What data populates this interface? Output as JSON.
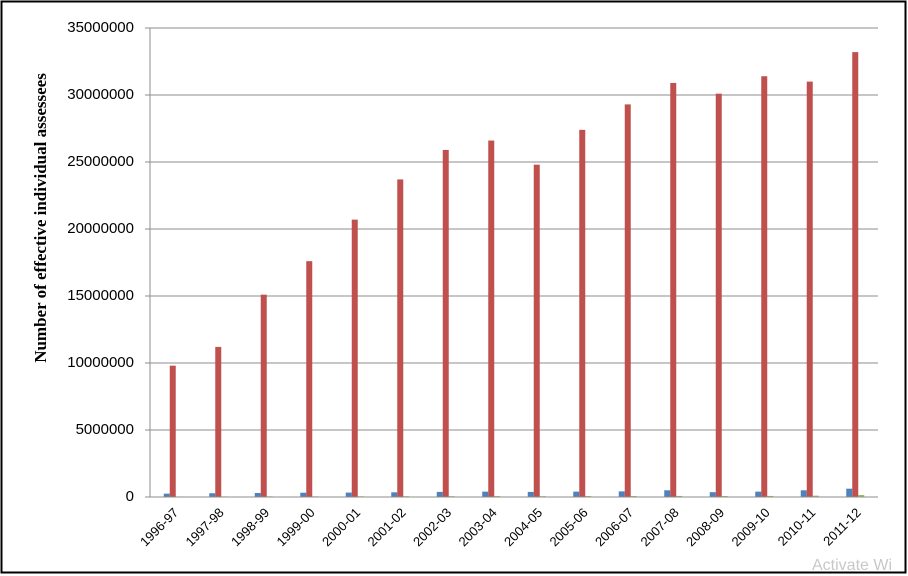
{
  "chart_data": {
    "type": "bar",
    "y_axis_label": "Number of effective  individual assessees",
    "categories": [
      "1996-97",
      "1997-98",
      "1998-99",
      "1999-00",
      "2000-01",
      "2001-02",
      "2002-03",
      "2003-04",
      "2004-05",
      "2005-06",
      "2006-07",
      "2007-08",
      "2008-09",
      "2009-10",
      "2010-11",
      "2011-12"
    ],
    "series": [
      {
        "color": "#4f81bd",
        "values": [
          250000,
          280000,
          300000,
          320000,
          330000,
          350000,
          380000,
          400000,
          380000,
          400000,
          420000,
          500000,
          360000,
          400000,
          500000,
          620000
        ]
      },
      {
        "color": "#c0504d",
        "values": [
          9800000,
          11200000,
          15100000,
          17600000,
          20700000,
          23700000,
          25900000,
          26600000,
          24800000,
          27400000,
          29300000,
          30900000,
          30100000,
          31400000,
          31000000,
          33200000
        ]
      },
      {
        "color": "#9bbb59",
        "values": [
          40000,
          45000,
          50000,
          50000,
          55000,
          60000,
          60000,
          70000,
          60000,
          70000,
          70000,
          80000,
          70000,
          80000,
          100000,
          150000
        ]
      }
    ],
    "ylim": [
      0,
      35000000
    ],
    "yticks": [
      0,
      5000000,
      10000000,
      15000000,
      20000000,
      25000000,
      30000000,
      35000000
    ],
    "grid": true,
    "watermark": "Activate Wi"
  }
}
